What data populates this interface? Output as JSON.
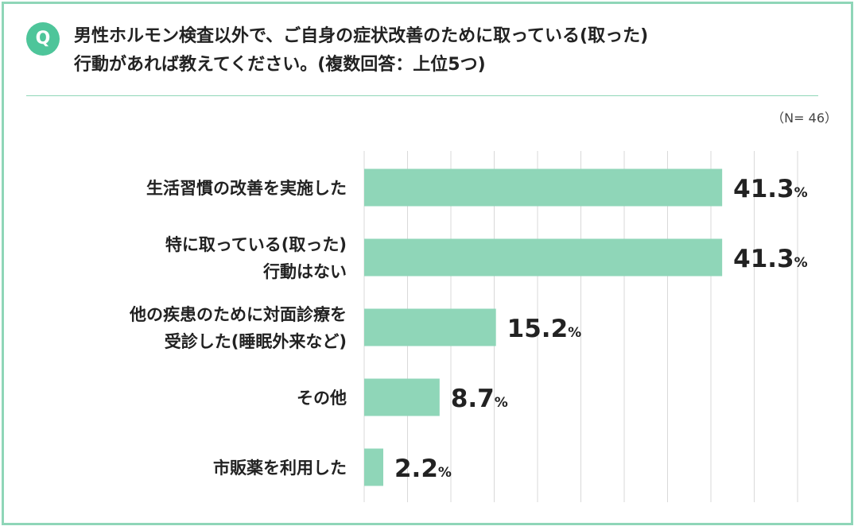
{
  "question": {
    "badge": "Q",
    "line1": "男性ホルモン検査以外で、ご自身の症状改善のために取っている(取った)",
    "line2": "行動があれば教えてください。(複数回答：上位5つ)"
  },
  "sample_note": "（N= 46）",
  "colors": {
    "bar": "#8fd6b8",
    "accent": "#4ec59a",
    "frame": "#8fd6b8",
    "grid": "#d9d9d9",
    "text": "#222222"
  },
  "chart_data": {
    "type": "bar",
    "orientation": "horizontal",
    "categories": [
      [
        "生活習慣の改善を実施した"
      ],
      [
        "特に取っている(取った)",
        "行動はない"
      ],
      [
        "他の疾患のために対面診療を",
        "受診した(睡眠外来など)"
      ],
      [
        "その他"
      ],
      [
        "市販薬を利用した"
      ]
    ],
    "values": [
      41.3,
      41.3,
      15.2,
      8.7,
      2.2
    ],
    "value_labels": [
      "41.3",
      "41.3",
      "15.2",
      "8.7",
      "2.2"
    ],
    "unit": "%",
    "xlim": [
      0,
      50
    ],
    "grid": true,
    "gridline_count": 11
  }
}
